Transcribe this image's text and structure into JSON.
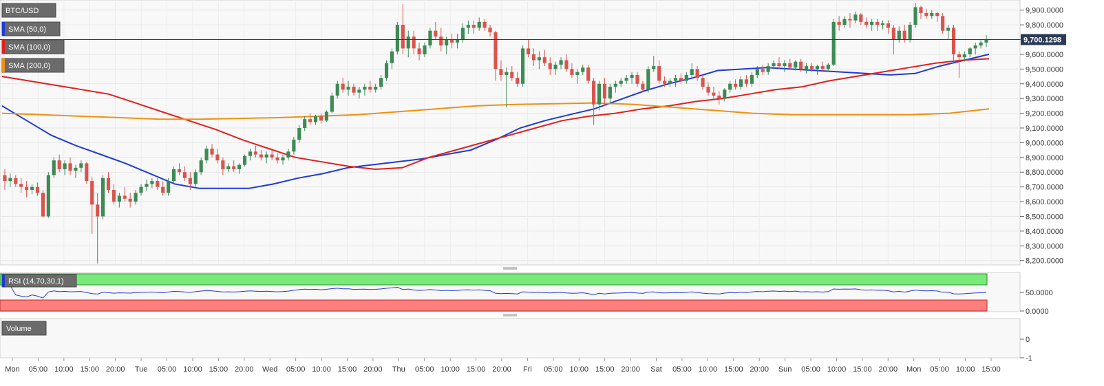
{
  "chart_data": {
    "type": "candlestick",
    "symbol": "BTC/USD",
    "current_price": 9700.1298,
    "current_price_label": "9,700.1298",
    "indicators": {
      "sma": [
        {
          "label": "SMA (50,0)",
          "color": "#1f3ad6",
          "values": [
            9250,
            9150,
            9050,
            8980,
            8920,
            8860,
            8790,
            8720,
            8690,
            8690,
            8690,
            8720,
            8760,
            8790,
            8830,
            8850,
            8870,
            8890,
            8920,
            8950,
            9020,
            9100,
            9150,
            9190,
            9230,
            9290,
            9350,
            9400,
            9440,
            9490,
            9500,
            9510,
            9500,
            9490,
            9480,
            9470,
            9460,
            9470,
            9520,
            9560,
            9600
          ]
        },
        {
          "label": "SMA (100,0)",
          "color": "#e02020",
          "values": [
            9450,
            9420,
            9390,
            9360,
            9330,
            9270,
            9210,
            9150,
            9090,
            9020,
            8960,
            8900,
            8870,
            8840,
            8820,
            8830,
            8900,
            8950,
            9000,
            9050,
            9100,
            9150,
            9180,
            9200,
            9230,
            9250,
            9280,
            9300,
            9330,
            9360,
            9380,
            9420,
            9450,
            9480,
            9510,
            9540,
            9560,
            9570
          ]
        },
        {
          "label": "SMA (200,0)",
          "color": "#f0900f",
          "values": [
            9200,
            9190,
            9180,
            9170,
            9160,
            9160,
            9165,
            9170,
            9180,
            9190,
            9210,
            9230,
            9250,
            9260,
            9265,
            9270,
            9260,
            9240,
            9220,
            9200,
            9190,
            9190,
            9190,
            9190,
            9200,
            9230
          ]
        }
      ],
      "rsi": {
        "label": "RSI (14,70,30,1)",
        "upper": 70,
        "lower": 30,
        "ticks": [
          {
            "v": 50,
            "label": "50.0000"
          },
          {
            "v": 0,
            "label": "0.0000"
          }
        ]
      },
      "volume": {
        "label": "Volume",
        "ticks": [
          {
            "v": 0,
            "label": "0"
          },
          {
            "v": -1,
            "label": "-1"
          }
        ]
      }
    },
    "y_axis": {
      "min": 8180,
      "max": 9950,
      "ticks": [
        {
          "v": 9900,
          "label": "9,900.0000"
        },
        {
          "v": 9800,
          "label": "9,800.0000"
        },
        {
          "v": 9700,
          "label": "9,700.0000"
        },
        {
          "v": 9600,
          "label": "9,600.0000"
        },
        {
          "v": 9500,
          "label": "9,500.0000"
        },
        {
          "v": 9400,
          "label": "9,400.0000"
        },
        {
          "v": 9300,
          "label": "9,300.0000"
        },
        {
          "v": 9200,
          "label": "9,200.0000"
        },
        {
          "v": 9100,
          "label": "9,100.0000"
        },
        {
          "v": 9000,
          "label": "9,000.0000"
        },
        {
          "v": 8900,
          "label": "8,900.0000"
        },
        {
          "v": 8800,
          "label": "8,800.0000"
        },
        {
          "v": 8700,
          "label": "8,700.0000"
        },
        {
          "v": 8600,
          "label": "8,600.0000"
        },
        {
          "v": 8500,
          "label": "8,500.0000"
        },
        {
          "v": 8400,
          "label": "8,400.0000"
        },
        {
          "v": 8300,
          "label": "8,300.0000"
        },
        {
          "v": 8200,
          "label": "8,200.0000"
        }
      ]
    },
    "x_axis": {
      "labels": [
        "Mon",
        "05:00",
        "10:00",
        "15:00",
        "20:00",
        "Tue",
        "05:00",
        "10:00",
        "15:00",
        "20:00",
        "Wed",
        "05:00",
        "10:00",
        "15:00",
        "20:00",
        "Thu",
        "05:00",
        "10:00",
        "15:00",
        "20:00",
        "Fri",
        "05:00",
        "10:00",
        "15:00",
        "20:00",
        "Sat",
        "05:00",
        "10:00",
        "15:00",
        "20:00",
        "Sun",
        "05:00",
        "10:00",
        "15:00",
        "20:00",
        "Mon",
        "05:00",
        "10:00",
        "15:00"
      ]
    },
    "candles": [
      [
        8780,
        8820,
        8680,
        8740
      ],
      [
        8740,
        8790,
        8700,
        8760
      ],
      [
        8760,
        8780,
        8700,
        8720
      ],
      [
        8720,
        8760,
        8660,
        8700
      ],
      [
        8700,
        8740,
        8630,
        8680
      ],
      [
        8680,
        8720,
        8650,
        8700
      ],
      [
        8700,
        8730,
        8640,
        8660
      ],
      [
        8660,
        8680,
        8490,
        8500
      ],
      [
        8500,
        8800,
        8490,
        8780
      ],
      [
        8780,
        8900,
        8760,
        8880
      ],
      [
        8880,
        8920,
        8800,
        8820
      ],
      [
        8820,
        8880,
        8780,
        8860
      ],
      [
        8860,
        8900,
        8780,
        8810
      ],
      [
        8810,
        8850,
        8760,
        8830
      ],
      [
        8830,
        8880,
        8800,
        8860
      ],
      [
        8860,
        8870,
        8720,
        8740
      ],
      [
        8740,
        8770,
        8380,
        8580
      ],
      [
        8580,
        8660,
        8180,
        8500
      ],
      [
        8500,
        8780,
        8480,
        8760
      ],
      [
        8760,
        8800,
        8660,
        8680
      ],
      [
        8680,
        8720,
        8580,
        8600
      ],
      [
        8600,
        8660,
        8560,
        8640
      ],
      [
        8640,
        8700,
        8600,
        8620
      ],
      [
        8620,
        8660,
        8560,
        8600
      ],
      [
        8600,
        8680,
        8580,
        8660
      ],
      [
        8660,
        8720,
        8640,
        8700
      ],
      [
        8700,
        8750,
        8670,
        8720
      ],
      [
        8720,
        8760,
        8690,
        8740
      ],
      [
        8740,
        8760,
        8680,
        8700
      ],
      [
        8700,
        8740,
        8640,
        8660
      ],
      [
        8660,
        8760,
        8640,
        8740
      ],
      [
        8740,
        8840,
        8720,
        8820
      ],
      [
        8820,
        8860,
        8780,
        8800
      ],
      [
        8800,
        8840,
        8740,
        8760
      ],
      [
        8760,
        8800,
        8680,
        8720
      ],
      [
        8720,
        8820,
        8700,
        8800
      ],
      [
        8800,
        8900,
        8780,
        8880
      ],
      [
        8880,
        8980,
        8860,
        8960
      ],
      [
        8960,
        8990,
        8900,
        8920
      ],
      [
        8920,
        8960,
        8860,
        8880
      ],
      [
        8880,
        8900,
        8780,
        8820
      ],
      [
        8820,
        8860,
        8800,
        8840
      ],
      [
        8840,
        8880,
        8800,
        8820
      ],
      [
        8820,
        8860,
        8790,
        8850
      ],
      [
        8850,
        8920,
        8840,
        8910
      ],
      [
        8910,
        8960,
        8880,
        8940
      ],
      [
        8940,
        8980,
        8900,
        8920
      ],
      [
        8920,
        8950,
        8880,
        8900
      ],
      [
        8900,
        8940,
        8860,
        8920
      ],
      [
        8920,
        8950,
        8880,
        8900
      ],
      [
        8900,
        8930,
        8860,
        8880
      ],
      [
        8880,
        8920,
        8850,
        8900
      ],
      [
        8900,
        8960,
        8880,
        8940
      ],
      [
        8940,
        9040,
        8920,
        9020
      ],
      [
        9020,
        9120,
        9000,
        9100
      ],
      [
        9100,
        9180,
        9080,
        9160
      ],
      [
        9160,
        9200,
        9120,
        9140
      ],
      [
        9140,
        9190,
        9120,
        9180
      ],
      [
        9180,
        9200,
        9130,
        9150
      ],
      [
        9150,
        9220,
        9140,
        9210
      ],
      [
        9210,
        9340,
        9200,
        9320
      ],
      [
        9320,
        9420,
        9300,
        9400
      ],
      [
        9400,
        9440,
        9340,
        9360
      ],
      [
        9360,
        9420,
        9320,
        9380
      ],
      [
        9380,
        9400,
        9320,
        9340
      ],
      [
        9340,
        9380,
        9300,
        9360
      ],
      [
        9360,
        9400,
        9320,
        9380
      ],
      [
        9380,
        9420,
        9340,
        9360
      ],
      [
        9360,
        9400,
        9340,
        9380
      ],
      [
        9380,
        9460,
        9360,
        9440
      ],
      [
        9440,
        9560,
        9420,
        9540
      ],
      [
        9540,
        9640,
        9500,
        9620
      ],
      [
        9620,
        9820,
        9600,
        9800
      ],
      [
        9800,
        9940,
        9600,
        9640
      ],
      [
        9640,
        9760,
        9580,
        9720
      ],
      [
        9720,
        9760,
        9600,
        9640
      ],
      [
        9640,
        9680,
        9560,
        9600
      ],
      [
        9600,
        9680,
        9580,
        9660
      ],
      [
        9660,
        9780,
        9640,
        9760
      ],
      [
        9760,
        9820,
        9700,
        9720
      ],
      [
        9720,
        9780,
        9620,
        9660
      ],
      [
        9660,
        9720,
        9600,
        9700
      ],
      [
        9700,
        9740,
        9640,
        9680
      ],
      [
        9680,
        9740,
        9640,
        9700
      ],
      [
        9700,
        9810,
        9680,
        9780
      ],
      [
        9780,
        9830,
        9740,
        9800
      ],
      [
        9800,
        9830,
        9740,
        9780
      ],
      [
        9780,
        9850,
        9760,
        9820
      ],
      [
        9820,
        9840,
        9760,
        9780
      ],
      [
        9780,
        9800,
        9720,
        9750
      ],
      [
        9750,
        9760,
        9420,
        9500
      ],
      [
        9500,
        9560,
        9420,
        9460
      ],
      [
        9460,
        9510,
        9240,
        9480
      ],
      [
        9480,
        9520,
        9420,
        9440
      ],
      [
        9440,
        9480,
        9380,
        9400
      ],
      [
        9400,
        9660,
        9380,
        9640
      ],
      [
        9640,
        9700,
        9580,
        9600
      ],
      [
        9600,
        9640,
        9520,
        9560
      ],
      [
        9560,
        9620,
        9500,
        9580
      ],
      [
        9580,
        9630,
        9520,
        9540
      ],
      [
        9540,
        9580,
        9460,
        9500
      ],
      [
        9500,
        9550,
        9460,
        9530
      ],
      [
        9530,
        9580,
        9500,
        9560
      ],
      [
        9560,
        9600,
        9480,
        9500
      ],
      [
        9500,
        9540,
        9440,
        9460
      ],
      [
        9460,
        9500,
        9400,
        9480
      ],
      [
        9480,
        9530,
        9460,
        9510
      ],
      [
        9510,
        9530,
        9400,
        9420
      ],
      [
        9420,
        9440,
        9120,
        9260
      ],
      [
        9260,
        9420,
        9220,
        9400
      ],
      [
        9400,
        9440,
        9250,
        9300
      ],
      [
        9300,
        9400,
        9260,
        9380
      ],
      [
        9380,
        9420,
        9340,
        9400
      ],
      [
        9400,
        9440,
        9380,
        9420
      ],
      [
        9420,
        9460,
        9400,
        9440
      ],
      [
        9440,
        9480,
        9400,
        9460
      ],
      [
        9460,
        9480,
        9380,
        9400
      ],
      [
        9400,
        9420,
        9340,
        9360
      ],
      [
        9360,
        9520,
        9340,
        9500
      ],
      [
        9500,
        9590,
        9480,
        9520
      ],
      [
        9520,
        9560,
        9400,
        9420
      ],
      [
        9420,
        9450,
        9380,
        9400
      ],
      [
        9400,
        9440,
        9380,
        9420
      ],
      [
        9420,
        9460,
        9380,
        9440
      ],
      [
        9440,
        9470,
        9400,
        9420
      ],
      [
        9420,
        9480,
        9400,
        9460
      ],
      [
        9460,
        9540,
        9440,
        9500
      ],
      [
        9500,
        9520,
        9420,
        9440
      ],
      [
        9440,
        9460,
        9360,
        9380
      ],
      [
        9380,
        9410,
        9320,
        9340
      ],
      [
        9340,
        9380,
        9300,
        9320
      ],
      [
        9320,
        9350,
        9260,
        9300
      ],
      [
        9300,
        9370,
        9280,
        9360
      ],
      [
        9360,
        9420,
        9340,
        9400
      ],
      [
        9400,
        9430,
        9360,
        9380
      ],
      [
        9380,
        9450,
        9360,
        9430
      ],
      [
        9430,
        9460,
        9380,
        9400
      ],
      [
        9400,
        9480,
        9380,
        9460
      ],
      [
        9460,
        9520,
        9440,
        9500
      ],
      [
        9500,
        9530,
        9460,
        9480
      ],
      [
        9480,
        9540,
        9460,
        9520
      ],
      [
        9520,
        9560,
        9500,
        9540
      ],
      [
        9540,
        9580,
        9500,
        9520
      ],
      [
        9520,
        9560,
        9480,
        9540
      ],
      [
        9540,
        9570,
        9500,
        9510
      ],
      [
        9510,
        9560,
        9490,
        9550
      ],
      [
        9550,
        9570,
        9480,
        9500
      ],
      [
        9500,
        9540,
        9470,
        9520
      ],
      [
        9520,
        9540,
        9480,
        9500
      ],
      [
        9500,
        9530,
        9460,
        9520
      ],
      [
        9520,
        9550,
        9480,
        9500
      ],
      [
        9500,
        9540,
        9480,
        9530
      ],
      [
        9530,
        9840,
        9520,
        9820
      ],
      [
        9820,
        9860,
        9760,
        9800
      ],
      [
        9800,
        9860,
        9780,
        9840
      ],
      [
        9840,
        9880,
        9780,
        9830
      ],
      [
        9830,
        9890,
        9810,
        9870
      ],
      [
        9870,
        9880,
        9800,
        9820
      ],
      [
        9820,
        9850,
        9780,
        9800
      ],
      [
        9800,
        9840,
        9760,
        9820
      ],
      [
        9820,
        9840,
        9760,
        9800
      ],
      [
        9800,
        9830,
        9770,
        9810
      ],
      [
        9810,
        9830,
        9740,
        9780
      ],
      [
        9780,
        9800,
        9600,
        9700
      ],
      [
        9700,
        9790,
        9680,
        9760
      ],
      [
        9760,
        9800,
        9680,
        9700
      ],
      [
        9700,
        9820,
        9680,
        9800
      ],
      [
        9800,
        9950,
        9780,
        9920
      ],
      [
        9920,
        9930,
        9840,
        9880
      ],
      [
        9880,
        9910,
        9840,
        9860
      ],
      [
        9860,
        9900,
        9840,
        9880
      ],
      [
        9880,
        9890,
        9820,
        9860
      ],
      [
        9860,
        9880,
        9740,
        9760
      ],
      [
        9760,
        9800,
        9700,
        9780
      ],
      [
        9780,
        9800,
        9560,
        9600
      ],
      [
        9600,
        9620,
        9440,
        9580
      ],
      [
        9580,
        9620,
        9550,
        9600
      ],
      [
        9600,
        9650,
        9580,
        9640
      ],
      [
        9640,
        9680,
        9600,
        9660
      ],
      [
        9660,
        9700,
        9640,
        9680
      ],
      [
        9680,
        9730,
        9650,
        9700
      ]
    ]
  }
}
